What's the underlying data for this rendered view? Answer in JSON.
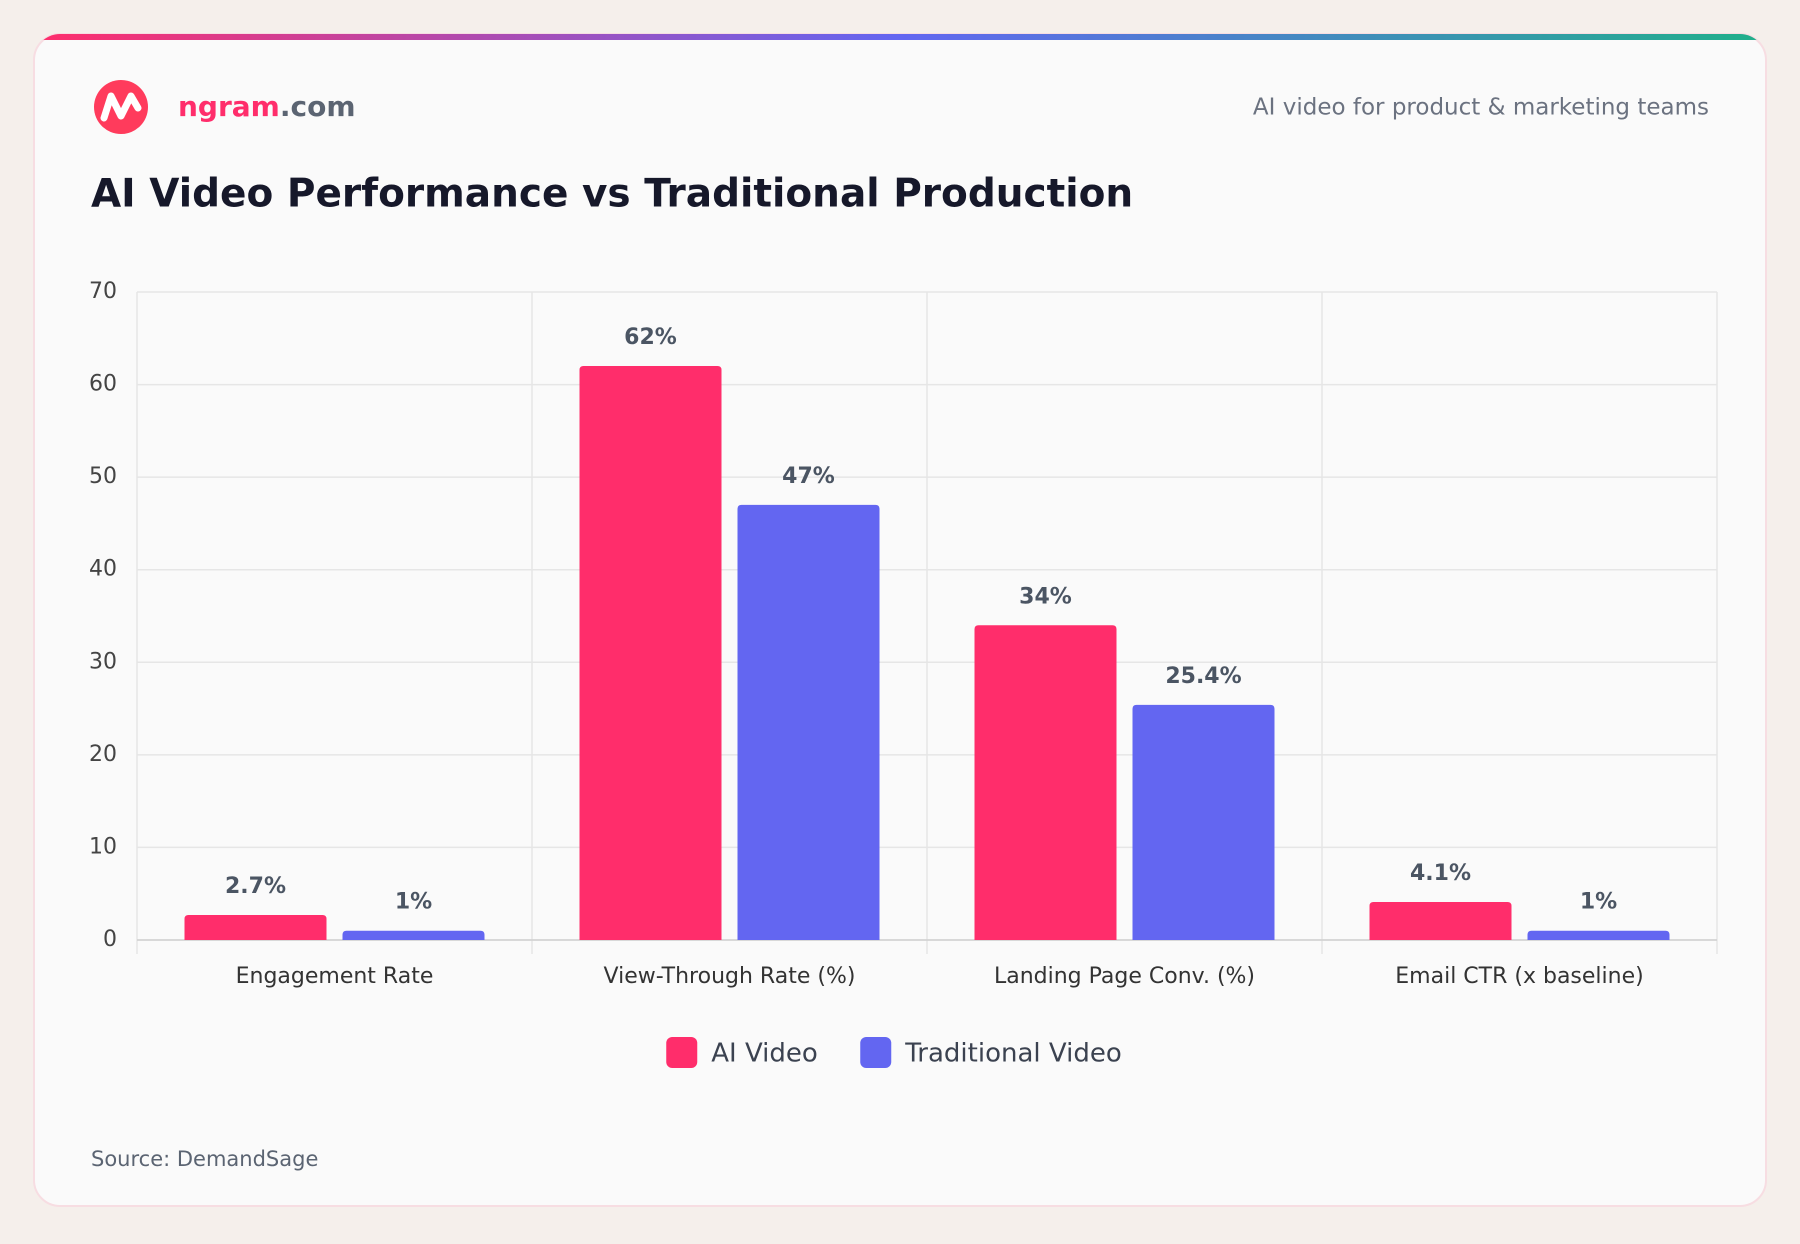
{
  "brand": {
    "name": "ngram",
    "suffix": ".com",
    "tagline": "AI video for product & marketing teams"
  },
  "chart_data": {
    "type": "bar",
    "title": "AI Video Performance vs Traditional Production",
    "categories": [
      "Engagement Rate",
      "View-Through Rate (%)",
      "Landing Page Conv. (%)",
      "Email CTR (x baseline)"
    ],
    "series": [
      {
        "name": "AI Video",
        "color": "#ff2d6b",
        "values": [
          2.7,
          62,
          34,
          4.1
        ],
        "value_labels": [
          "2.7%",
          "62%",
          "34%",
          "4.1%"
        ]
      },
      {
        "name": "Traditional Video",
        "color": "#6366f1",
        "values": [
          1,
          47,
          25.4,
          1
        ],
        "value_labels": [
          "1%",
          "47%",
          "25.4%",
          "1%"
        ]
      }
    ],
    "ylim": [
      0,
      70
    ],
    "yticks": [
      0,
      10,
      20,
      30,
      40,
      50,
      60,
      70
    ],
    "grid": true,
    "legend": "bottom",
    "source": "Source: DemandSage"
  }
}
